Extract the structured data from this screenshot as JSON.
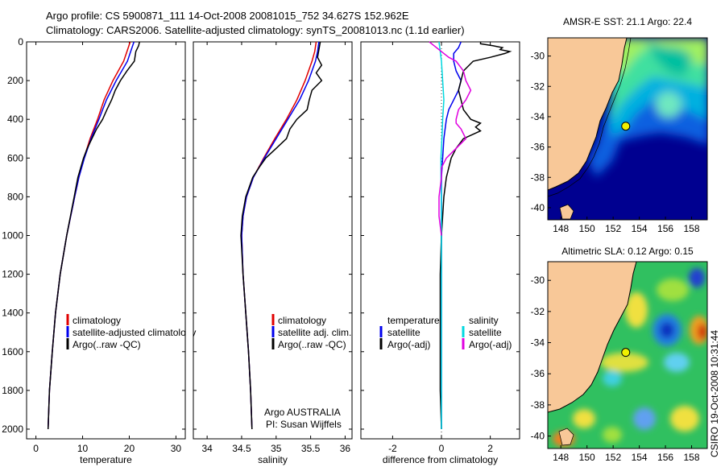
{
  "header": {
    "line1": "Argo profile: CS 5900871_111 14-Oct-2008 20081015_752 34.627S 152.962E",
    "line2": "Climatology: CARS2006. Satellite-adjusted climatology: synTS_20081013.nc (1.1d earlier)"
  },
  "side_label": "CSIRO 19-Oct-2008 10:31:44",
  "colors": {
    "climatology": "#e00000",
    "satellite": "#0000ee",
    "argo": "#000000",
    "sal_sat": "#00d8e0",
    "sal_argo": "#e000e0",
    "land": "#f8c898"
  },
  "chart_data": [
    {
      "type": "line",
      "xlabel": "temperature",
      "xlim": [
        -2,
        32
      ],
      "ylim": [
        2050,
        0
      ],
      "xticks": [
        0,
        10,
        20,
        30
      ],
      "yticks": [
        0,
        200,
        400,
        600,
        800,
        1000,
        1200,
        1400,
        1600,
        1800,
        2000
      ],
      "legend": [
        "climatology",
        "satellite-adjusted climatology",
        "Argo(..raw -QC)"
      ],
      "series": [
        {
          "name": "climatology",
          "color": "#e00000",
          "depth": [
            0,
            50,
            100,
            200,
            300,
            400,
            500,
            600,
            700,
            800,
            1000,
            1200,
            1400,
            1600,
            1800,
            2000
          ],
          "values": [
            20.2,
            19.5,
            18.8,
            16.5,
            14.6,
            13.2,
            11.6,
            10.3,
            9.2,
            8.3,
            6.6,
            5.2,
            4.2,
            3.5,
            2.9,
            2.6
          ]
        },
        {
          "name": "satellite",
          "color": "#0000ee",
          "depth": [
            0,
            50,
            100,
            200,
            300,
            400,
            500,
            600,
            700,
            800,
            1000,
            1200,
            1400,
            1600,
            1800,
            2000
          ],
          "values": [
            21.0,
            20.3,
            19.6,
            17.2,
            15.1,
            13.5,
            11.8,
            10.4,
            9.2,
            8.3,
            6.6,
            5.2,
            4.2,
            3.5,
            2.9,
            2.6
          ]
        },
        {
          "name": "argo",
          "color": "#000000",
          "depth": [
            0,
            20,
            50,
            100,
            150,
            200,
            250,
            300,
            350,
            400,
            450,
            500,
            550,
            600,
            700,
            800,
            1000,
            1200,
            1400,
            1600,
            1800,
            2000
          ],
          "values": [
            22.2,
            22.0,
            21.4,
            21.1,
            19.5,
            18.1,
            17.0,
            16.2,
            15.2,
            14.3,
            13.0,
            12.0,
            11.0,
            10.2,
            9.0,
            8.2,
            6.6,
            5.2,
            4.2,
            3.5,
            2.9,
            2.6
          ]
        }
      ]
    },
    {
      "type": "line",
      "xlabel": "salinity",
      "xlim": [
        33.8,
        36.1
      ],
      "ylim": [
        2050,
        0
      ],
      "xticks": [
        34,
        34.5,
        35,
        35.5,
        36
      ],
      "legend": [
        "climatology",
        "satellite adj. clim.",
        "Argo(..raw -QC)"
      ],
      "annotation": [
        "Argo AUSTRALIA",
        "PI: Susan Wijffels"
      ],
      "series": [
        {
          "name": "climatology",
          "color": "#e00000",
          "depth": [
            0,
            50,
            100,
            200,
            300,
            400,
            500,
            600,
            700,
            800,
            900,
            1000,
            1200,
            1400,
            1600,
            1800,
            2000
          ],
          "values": [
            35.58,
            35.56,
            35.52,
            35.42,
            35.3,
            35.15,
            34.98,
            34.82,
            34.67,
            34.57,
            34.52,
            34.5,
            34.52,
            34.56,
            34.6,
            34.63,
            34.65
          ]
        },
        {
          "name": "satellite",
          "color": "#0000ee",
          "depth": [
            0,
            50,
            100,
            200,
            300,
            400,
            500,
            600,
            700,
            800,
            900,
            1000,
            1200,
            1400,
            1600,
            1800,
            2000
          ],
          "values": [
            35.62,
            35.6,
            35.57,
            35.47,
            35.34,
            35.17,
            35.0,
            34.83,
            34.67,
            34.57,
            34.52,
            34.5,
            34.52,
            34.56,
            34.6,
            34.63,
            34.65
          ]
        },
        {
          "name": "argo",
          "color": "#000000",
          "depth": [
            0,
            40,
            80,
            120,
            160,
            200,
            250,
            300,
            350,
            400,
            450,
            500,
            550,
            600,
            650,
            700,
            800,
            900,
            1000,
            1200,
            1400,
            1600,
            1800,
            2000
          ],
          "values": [
            35.64,
            35.62,
            35.6,
            35.66,
            35.58,
            35.66,
            35.52,
            35.48,
            35.45,
            35.3,
            35.2,
            35.15,
            35.0,
            34.85,
            34.75,
            34.66,
            34.56,
            34.51,
            34.49,
            34.52,
            34.56,
            34.6,
            34.63,
            34.65
          ]
        }
      ]
    },
    {
      "type": "line",
      "xlabel": "difference from climatology",
      "xlim": [
        -3.3,
        3.2
      ],
      "ylim": [
        2050,
        0
      ],
      "xticks": [
        -2,
        0,
        2
      ],
      "legend": [
        "temperature",
        "satellite",
        "Argo(-adj)",
        "salinity",
        "satellite",
        "Argo(-adj)"
      ],
      "series": [
        {
          "name": "temperature satellite",
          "color": "#0000ee",
          "depth": [
            0,
            30,
            60,
            100,
            150,
            200,
            250,
            300,
            350,
            400,
            500,
            600,
            700,
            800,
            1000,
            1200,
            1400,
            1600,
            1800,
            2000
          ],
          "values": [
            0.8,
            0.7,
            0.5,
            0.5,
            0.6,
            0.8,
            0.7,
            0.5,
            0.3,
            0.2,
            0.1,
            0.05,
            0.0,
            0.0,
            0.0,
            0.0,
            0.0,
            0.0,
            0.0,
            0.0
          ]
        },
        {
          "name": "temperature argo",
          "color": "#000000",
          "depth": [
            0,
            10,
            20,
            30,
            40,
            50,
            60,
            80,
            100,
            150,
            200,
            250,
            300,
            350,
            400,
            420,
            440,
            460,
            500,
            550,
            600,
            700,
            800,
            1000,
            1200,
            1400,
            1600,
            1800,
            2000
          ],
          "values": [
            1.6,
            1.6,
            2.1,
            2.5,
            2.4,
            2.8,
            2.6,
            2.0,
            1.3,
            0.9,
            0.8,
            0.7,
            0.8,
            0.9,
            1.2,
            1.6,
            1.4,
            1.6,
            0.9,
            0.6,
            0.4,
            0.2,
            0.1,
            0.0,
            -0.05,
            -0.05,
            -0.05,
            -0.05,
            0.0
          ]
        },
        {
          "name": "salinity satellite",
          "color": "#00d8e0",
          "depth": [
            0,
            50,
            100,
            200,
            300,
            400,
            500,
            600,
            700,
            800,
            1000,
            1200,
            1400,
            1600,
            1800,
            2000
          ],
          "values": [
            -0.1,
            -0.05,
            0.0,
            0.05,
            0.1,
            0.05,
            0.02,
            -0.02,
            -0.02,
            0.0,
            0.0,
            0.0,
            0.0,
            0.0,
            0.0,
            0.0
          ]
        },
        {
          "name": "salinity argo",
          "color": "#e000e0",
          "depth": [
            0,
            20,
            40,
            60,
            80,
            100,
            150,
            200,
            250,
            300,
            350,
            400,
            420,
            450,
            500,
            550,
            600,
            650,
            700,
            800,
            900,
            1000
          ],
          "values": [
            -0.5,
            -0.3,
            -0.1,
            0.1,
            0.3,
            0.6,
            0.9,
            1.0,
            1.2,
            1.0,
            0.7,
            0.6,
            0.6,
            0.8,
            1.0,
            0.6,
            0.2,
            0.0,
            0.0,
            -0.1,
            -0.1,
            0.0
          ]
        }
      ]
    },
    {
      "type": "heatmap",
      "title": "AMSR-E SST: 21.1 Argo: 22.4",
      "xlim": [
        147,
        159.2
      ],
      "ylim": [
        -40.8,
        -28.8
      ],
      "xticks": [
        148,
        150,
        152,
        154,
        156,
        158
      ],
      "yticks": [
        -30,
        -32,
        -34,
        -36,
        -38,
        -40
      ],
      "float": {
        "lon": 152.962,
        "lat": -34.627
      }
    },
    {
      "type": "heatmap",
      "title": "Altimetric SLA: 0.12 Argo: 0.15",
      "xlim": [
        147,
        159.2
      ],
      "ylim": [
        -40.8,
        -28.8
      ],
      "xticks": [
        148,
        150,
        152,
        154,
        156,
        158
      ],
      "yticks": [
        -30,
        -32,
        -34,
        -36,
        -38,
        -40
      ],
      "float": {
        "lon": 152.962,
        "lat": -34.627
      }
    }
  ]
}
